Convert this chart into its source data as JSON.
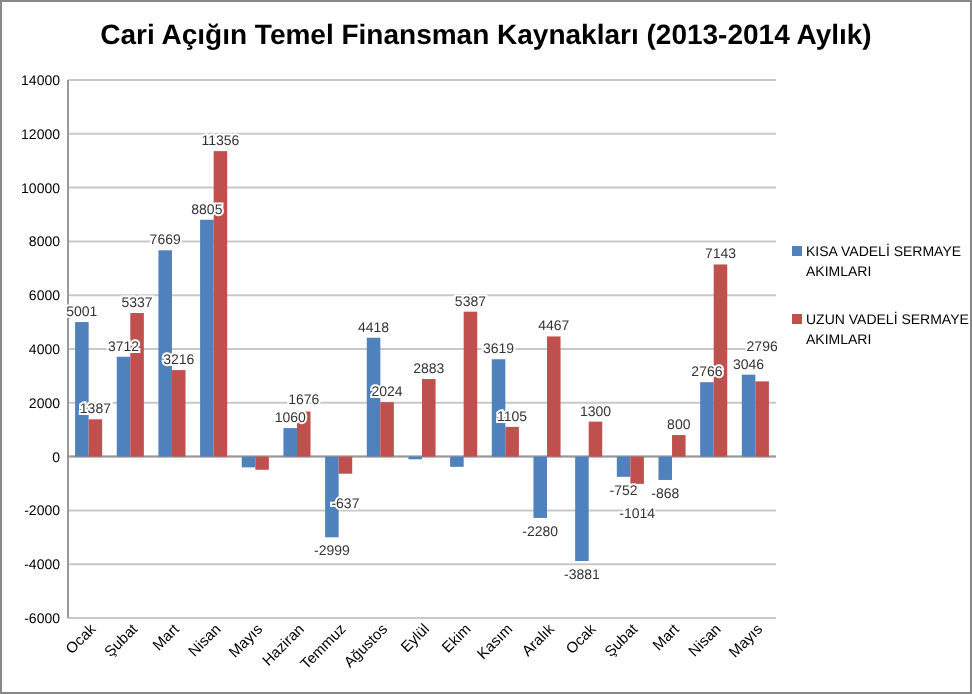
{
  "chart_data": {
    "type": "bar",
    "title": "Cari Açığın Temel Finansman Kaynakları  (2013-2014 Aylık)",
    "categories": [
      "Ocak",
      "Şubat",
      "Mart",
      "Nisan",
      "Mayıs",
      "Haziran",
      "Temmuz",
      "Ağustos",
      "Eylül",
      "Ekim",
      "Kasım",
      "Aralık",
      "Ocak",
      "Şubat",
      "Mart",
      "Nisan",
      "Mayıs"
    ],
    "series": [
      {
        "name": "KISA VADELİ SERMAYE AKIMLARI",
        "color": "#4f81bd",
        "values": [
          5001,
          3712,
          7669,
          8805,
          -400,
          1060,
          -2999,
          4418,
          -100,
          -380,
          3619,
          -2280,
          -3881,
          -752,
          -868,
          2766,
          3046
        ],
        "value_labels": [
          "5001",
          "3712",
          "7669",
          "8805",
          null,
          "1060",
          "-2999",
          "4418",
          null,
          null,
          "3619",
          "-2280",
          "-3881",
          "-752",
          "-868",
          "2766",
          "3046"
        ]
      },
      {
        "name": "UZUN VADELİ SERMAYE AKIMLARI",
        "color": "#c0504d",
        "values": [
          1387,
          5337,
          3216,
          11356,
          -490,
          1676,
          -637,
          2024,
          2883,
          5387,
          1105,
          4467,
          1300,
          -1014,
          800,
          7143,
          2796
        ],
        "value_labels": [
          "1387",
          "5337",
          "3216",
          "11356",
          null,
          "1676",
          "-637",
          "2024",
          "2883",
          "5387",
          "1105",
          "4467",
          "1300",
          "-1014",
          "800",
          "7143",
          "2796"
        ]
      }
    ],
    "ylim": [
      -6000,
      14000
    ],
    "yticks": [
      -6000,
      -4000,
      -2000,
      0,
      2000,
      4000,
      6000,
      8000,
      10000,
      12000,
      14000
    ],
    "grid": "y",
    "legend": "right"
  }
}
